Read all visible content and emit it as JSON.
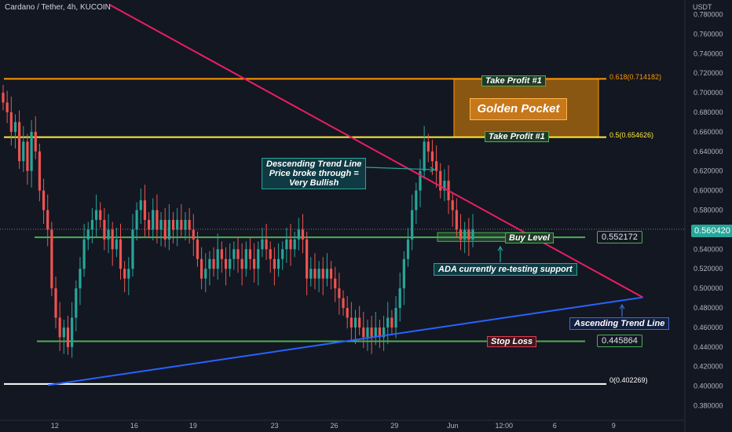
{
  "header": {
    "symbol": "Cardano / Tether, 4h, KUCOIN",
    "currency": "USDT"
  },
  "chart_data": {
    "type": "candlestick",
    "price_axis": {
      "ylim": [
        0.37,
        0.79
      ],
      "ticks": [
        "0.780000",
        "0.760000",
        "0.740000",
        "0.720000",
        "0.700000",
        "0.680000",
        "0.660000",
        "0.640000",
        "0.620000",
        "0.600000",
        "0.580000",
        "0.560000",
        "0.540000",
        "0.520000",
        "0.500000",
        "0.480000",
        "0.460000",
        "0.440000",
        "0.420000",
        "0.400000",
        "0.380000"
      ]
    },
    "time_axis": {
      "labels": [
        "12",
        "16",
        "19",
        "23",
        "26",
        "29",
        "Jun",
        "12:00",
        "6",
        "9"
      ]
    },
    "current_price": "0.560420",
    "levels": {
      "take_profit_top": {
        "price": 0.714182,
        "label": "0.618(0.714182)"
      },
      "take_profit_bottom": {
        "price": 0.654626,
        "label": "0.5(0.654626)"
      },
      "buy": {
        "price": 0.552172,
        "label": "0.552172"
      },
      "stop": {
        "price": 0.445864,
        "label": "0.445864"
      },
      "fib_zero": {
        "price": 0.402269,
        "label": "0(0.402269)"
      }
    },
    "trend_lines": {
      "descending": {
        "from": {
          "x": 0.16,
          "price": 0.79
        },
        "to": {
          "x": 0.91,
          "price": 0.49
        }
      },
      "ascending": {
        "from": {
          "x": 0.07,
          "price": 0.401
        },
        "to": {
          "x": 0.91,
          "price": 0.49
        }
      }
    },
    "candles_close": [
      0.69,
      0.68,
      0.66,
      0.67,
      0.63,
      0.65,
      0.62,
      0.66,
      0.64,
      0.6,
      0.58,
      0.56,
      0.5,
      0.47,
      0.45,
      0.46,
      0.44,
      0.47,
      0.5,
      0.52,
      0.55,
      0.56,
      0.57,
      0.58,
      0.57,
      0.55,
      0.56,
      0.54,
      0.55,
      0.52,
      0.51,
      0.52,
      0.56,
      0.58,
      0.59,
      0.57,
      0.56,
      0.58,
      0.56,
      0.57,
      0.55,
      0.57,
      0.56,
      0.57,
      0.56,
      0.57,
      0.56,
      0.55,
      0.53,
      0.51,
      0.52,
      0.53,
      0.52,
      0.54,
      0.53,
      0.52,
      0.53,
      0.54,
      0.53,
      0.52,
      0.54,
      0.53,
      0.52,
      0.54,
      0.55,
      0.54,
      0.53,
      0.52,
      0.53,
      0.54,
      0.55,
      0.54,
      0.55,
      0.56,
      0.55,
      0.51,
      0.52,
      0.51,
      0.52,
      0.51,
      0.52,
      0.51,
      0.5,
      0.49,
      0.48,
      0.47,
      0.46,
      0.47,
      0.46,
      0.45,
      0.46,
      0.45,
      0.46,
      0.45,
      0.46,
      0.47,
      0.46,
      0.48,
      0.5,
      0.53,
      0.55,
      0.58,
      0.6,
      0.62,
      0.65,
      0.64,
      0.63,
      0.62,
      0.6,
      0.61,
      0.59,
      0.58,
      0.56,
      0.55,
      0.56,
      0.55,
      0.56
    ]
  },
  "annotations": {
    "take_profit_1_top": "Take Profit #1",
    "take_profit_1_bottom": "Take Profit #1",
    "golden_pocket": "Golden Pocket",
    "descending_note": "Descending Trend Line\nPrice broke through =\nVery Bullish",
    "buy_level": "Buy Level",
    "retest_note": "ADA currently re-testing support",
    "ascending_note": "Ascending Trend Line",
    "stop_loss": "Stop Loss"
  },
  "colors": {
    "background": "#131722",
    "up": "#26a69a",
    "down": "#ef5350",
    "descending_line": "#e91e63",
    "ascending_line": "#2962ff",
    "level_green": "#4caf50",
    "tp_orange": "#ff9800",
    "tp_yellow": "#ffeb3b"
  }
}
